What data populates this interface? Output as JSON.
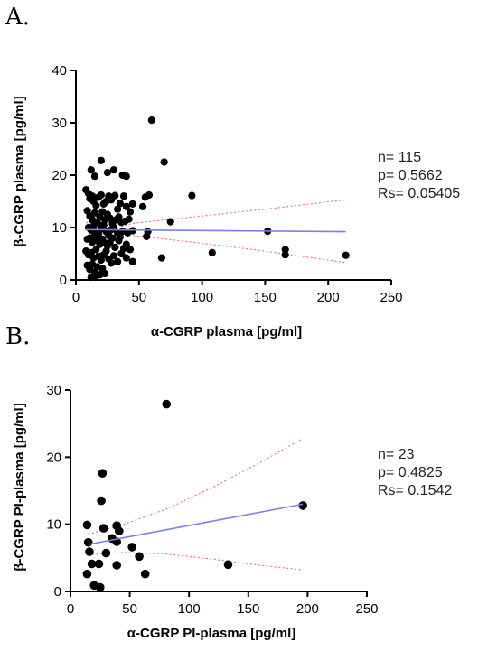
{
  "chart_data": [
    {
      "type": "scatter",
      "panel_label": "A.",
      "xlabel": "α-CGRP plasma [pg/ml]",
      "ylabel": "β-CGRP plasma [pg/ml]",
      "xlim": [
        0,
        250
      ],
      "ylim": [
        0,
        40
      ],
      "xticks": [
        0,
        50,
        100,
        150,
        200,
        250
      ],
      "yticks": [
        0,
        10,
        20,
        30,
        40
      ],
      "stats": [
        "n= 115",
        "p= 0.5662",
        "Rs= 0.05405"
      ],
      "regression": {
        "x": [
          8,
          214
        ],
        "y": [
          9.6,
          9.2
        ]
      },
      "ci_upper": {
        "x": [
          8,
          45,
          100,
          150,
          214
        ],
        "y": [
          8.2,
          10.8,
          12.2,
          13.5,
          15.3
        ]
      },
      "ci_lower": {
        "x": [
          8,
          45,
          100,
          150,
          214
        ],
        "y": [
          11.0,
          8.5,
          7.0,
          5.5,
          3.3
        ]
      },
      "points": [
        [
          60,
          30.5
        ],
        [
          70,
          22.5
        ],
        [
          20,
          22.8
        ],
        [
          12,
          21
        ],
        [
          15,
          19.8
        ],
        [
          25,
          20.5
        ],
        [
          30,
          21
        ],
        [
          37,
          20
        ],
        [
          40,
          19.8
        ],
        [
          8,
          17.2
        ],
        [
          10,
          16.5
        ],
        [
          11,
          15.5
        ],
        [
          13,
          16.0
        ],
        [
          14,
          15.0
        ],
        [
          16,
          14.2
        ],
        [
          18,
          15.8
        ],
        [
          20,
          16.2
        ],
        [
          22,
          14.5
        ],
        [
          24,
          15.0
        ],
        [
          26,
          16.0
        ],
        [
          28,
          15.3
        ],
        [
          31,
          16.1
        ],
        [
          33,
          13.5
        ],
        [
          35,
          14.6
        ],
        [
          38,
          16.0
        ],
        [
          40,
          14.0
        ],
        [
          43,
          13.0
        ],
        [
          45,
          14.5
        ],
        [
          55,
          15.8
        ],
        [
          58,
          16.2
        ],
        [
          92,
          16.1
        ],
        [
          53,
          14.0
        ],
        [
          9,
          13.2
        ],
        [
          11,
          12.2
        ],
        [
          13,
          11.5
        ],
        [
          15,
          12.8
        ],
        [
          17,
          11.0
        ],
        [
          19,
          12.0
        ],
        [
          21,
          13.0
        ],
        [
          23,
          11.5
        ],
        [
          25,
          12.5
        ],
        [
          27,
          11.8
        ],
        [
          29,
          10.8
        ],
        [
          32,
          11.5
        ],
        [
          34,
          12.0
        ],
        [
          36,
          11.0
        ],
        [
          39,
          11.2
        ],
        [
          42,
          11.6
        ],
        [
          75,
          11.1
        ],
        [
          10,
          10.0
        ],
        [
          12,
          9.5
        ],
        [
          14,
          10.2
        ],
        [
          16,
          9.0
        ],
        [
          18,
          8.8
        ],
        [
          20,
          9.8
        ],
        [
          22,
          10.5
        ],
        [
          24,
          9.2
        ],
        [
          26,
          8.5
        ],
        [
          28,
          9.6
        ],
        [
          30,
          10.0
        ],
        [
          33,
          9.0
        ],
        [
          35,
          8.2
        ],
        [
          37,
          9.3
        ],
        [
          41,
          9.0
        ],
        [
          45,
          9.4
        ],
        [
          57,
          9.2
        ],
        [
          9,
          7.8
        ],
        [
          11,
          8.0
        ],
        [
          13,
          7.2
        ],
        [
          15,
          8.5
        ],
        [
          17,
          7.5
        ],
        [
          19,
          6.8
        ],
        [
          21,
          7.8
        ],
        [
          23,
          7.0
        ],
        [
          25,
          6.5
        ],
        [
          27,
          7.2
        ],
        [
          29,
          8.0
        ],
        [
          31,
          6.2
        ],
        [
          34,
          7.5
        ],
        [
          38,
          6.0
        ],
        [
          40,
          6.8
        ],
        [
          43,
          5.8
        ],
        [
          56,
          8.3
        ],
        [
          152,
          9.3
        ],
        [
          8,
          5.5
        ],
        [
          10,
          4.8
        ],
        [
          12,
          5.2
        ],
        [
          14,
          4.2
        ],
        [
          16,
          5.8
        ],
        [
          18,
          4.5
        ],
        [
          20,
          3.8
        ],
        [
          22,
          4.8
        ],
        [
          24,
          5.5
        ],
        [
          26,
          4.0
        ],
        [
          28,
          3.2
        ],
        [
          30,
          4.6
        ],
        [
          33,
          3.5
        ],
        [
          36,
          5.0
        ],
        [
          40,
          4.2
        ],
        [
          45,
          3.5
        ],
        [
          68,
          4.2
        ],
        [
          108,
          5.2
        ],
        [
          166,
          5.8
        ],
        [
          166,
          4.8
        ],
        [
          214,
          4.7
        ],
        [
          9,
          2.8
        ],
        [
          11,
          2.0
        ],
        [
          13,
          3.0
        ],
        [
          15,
          1.5
        ],
        [
          17,
          2.5
        ],
        [
          19,
          1.0
        ],
        [
          21,
          2.2
        ],
        [
          23,
          1.2
        ],
        [
          12,
          0.5
        ],
        [
          16,
          0.8
        ]
      ]
    },
    {
      "type": "scatter",
      "panel_label": "B.",
      "xlabel": "α-CGRP PI-plasma [pg/ml]",
      "ylabel": "β-CGRP PI-plasma [pg/ml]",
      "xlim": [
        0,
        250
      ],
      "ylim": [
        0,
        30
      ],
      "xticks": [
        0,
        50,
        100,
        150,
        200,
        250
      ],
      "yticks": [
        0,
        10,
        20,
        30
      ],
      "stats": [
        "n= 23",
        "p= 0.4825",
        "Rs= 0.1542"
      ],
      "regression": {
        "x": [
          15,
          196
        ],
        "y": [
          7.0,
          13.0
        ]
      },
      "ci_upper": {
        "x": [
          15,
          45,
          80,
          120,
          160,
          196
        ],
        "y": [
          8.5,
          10.0,
          12.2,
          15.5,
          19.2,
          22.8
        ]
      },
      "ci_lower": {
        "x": [
          15,
          45,
          80,
          120,
          160,
          196
        ],
        "y": [
          5.5,
          5.8,
          5.6,
          4.8,
          3.9,
          3.2
        ]
      },
      "points": [
        [
          81,
          27.9
        ],
        [
          27,
          17.6
        ],
        [
          26,
          13.5
        ],
        [
          14,
          9.9
        ],
        [
          28,
          9.4
        ],
        [
          39,
          9.8
        ],
        [
          41,
          9.0
        ],
        [
          196,
          12.8
        ],
        [
          15,
          7.3
        ],
        [
          35,
          7.9
        ],
        [
          39,
          7.4
        ],
        [
          30,
          5.7
        ],
        [
          16,
          5.9
        ],
        [
          52,
          6.6
        ],
        [
          58,
          5.2
        ],
        [
          24,
          4.1
        ],
        [
          39,
          3.9
        ],
        [
          133,
          4.0
        ],
        [
          14,
          2.6
        ],
        [
          63,
          2.6
        ],
        [
          20,
          0.9
        ],
        [
          25,
          0.6
        ],
        [
          18,
          4.1
        ]
      ]
    }
  ]
}
